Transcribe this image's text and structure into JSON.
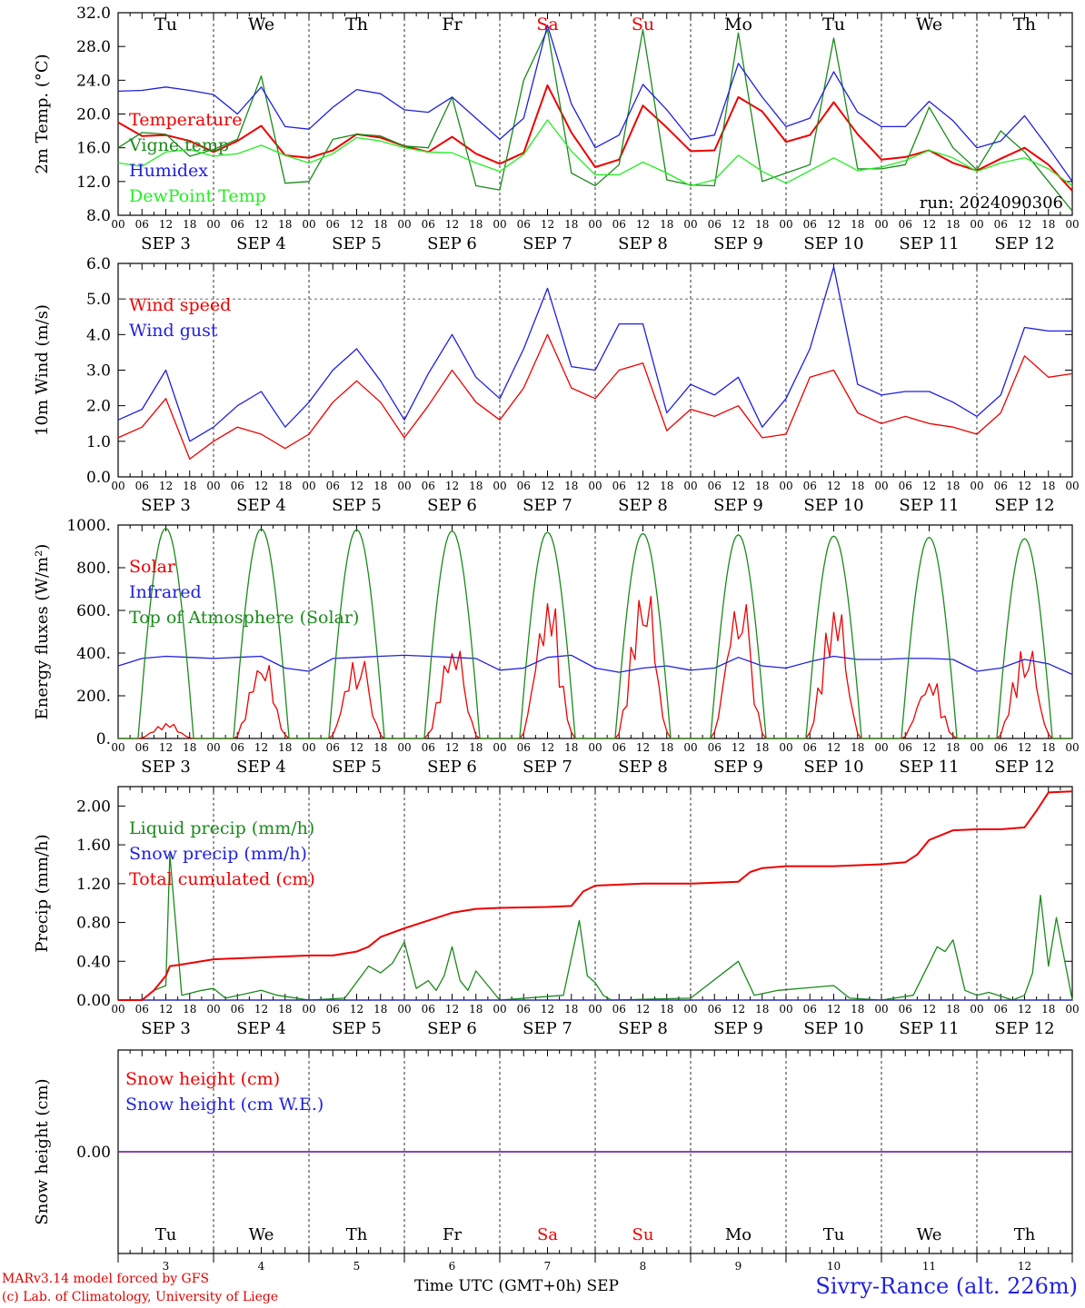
{
  "days": {
    "weekday_labels": [
      "Tu",
      "We",
      "Th",
      "Fr",
      "Sa",
      "Su",
      "Mo",
      "Tu",
      "We",
      "Th"
    ],
    "date_labels": [
      "SEP  3",
      "SEP  4",
      "SEP  5",
      "SEP  6",
      "SEP  7",
      "SEP  8",
      "SEP  9",
      "SEP  10",
      "SEP  11",
      "SEP  12"
    ],
    "day_numbers": [
      "3",
      "4",
      "5",
      "6",
      "7",
      "8",
      "9",
      "10",
      "11",
      "12"
    ],
    "hour_labels": [
      "00",
      "06",
      "12",
      "18"
    ],
    "last_hour_label": "00",
    "weekend_indices": [
      4,
      5
    ]
  },
  "colors": {
    "red": "#ee0000",
    "dark_green": "#1a8a1a",
    "blue": "#1f1fe0",
    "light_green": "#22ee22",
    "purple": "#7a2aa0"
  },
  "run_label": "run: 2024090306",
  "footer": {
    "model": "MARv3.14 model forced by GFS",
    "copyright": "(c) Lab. of Climatology, University of Liege",
    "axis_title": "Time UTC (GMT+0h) SEP",
    "station": "Sivry-Rance (alt. 226m)"
  },
  "chart_data": [
    {
      "id": "temp",
      "type": "line",
      "ylabel": "2m Temp. (°C)",
      "ylim": [
        8,
        32
      ],
      "yticks": [
        8,
        12,
        16,
        20,
        24,
        28,
        32
      ],
      "ytick_labels": [
        "8.0",
        "12.0",
        "16.0",
        "20.0",
        "24.0",
        "28.0",
        "32.0"
      ],
      "series": [
        {
          "name": "Temperature",
          "color": "red",
          "x": [
            0,
            6,
            12,
            18,
            24,
            30,
            36,
            42,
            48,
            54,
            60,
            66,
            72,
            78,
            84,
            90,
            96,
            102,
            108,
            114,
            120,
            126,
            132,
            138,
            144,
            150,
            156,
            162,
            168,
            174,
            180,
            186,
            192,
            198,
            204,
            210,
            216,
            222,
            228,
            234,
            240
          ],
          "y": [
            19,
            17.4,
            17.5,
            16.8,
            15.5,
            16.8,
            18.6,
            15.1,
            14.8,
            15.7,
            17.6,
            17.2,
            16.2,
            15.5,
            17.3,
            15.3,
            14.1,
            15.4,
            23.4,
            17.8,
            13.7,
            14.6,
            21,
            18.4,
            15.6,
            15.7,
            22,
            20.3,
            16.7,
            17.5,
            21.4,
            17.6,
            14.6,
            14.9,
            15.7,
            14.2,
            13.3,
            14.7,
            16,
            14,
            10.9
          ]
        },
        {
          "name": "Vigne temp",
          "color": "dark_green",
          "x": [
            0,
            6,
            12,
            18,
            24,
            30,
            36,
            42,
            48,
            54,
            60,
            66,
            72,
            78,
            84,
            90,
            96,
            102,
            108,
            114,
            120,
            126,
            132,
            138,
            144,
            150,
            156,
            162,
            168,
            174,
            180,
            186,
            192,
            198,
            204,
            210,
            216,
            222,
            228,
            234,
            240
          ],
          "y": [
            16,
            17.8,
            17.6,
            15,
            15.8,
            17,
            24.5,
            11.8,
            12,
            17,
            17.6,
            17.4,
            16.2,
            16,
            22,
            11.5,
            11,
            24,
            30,
            13,
            11.5,
            14,
            30,
            12.2,
            11.6,
            11.5,
            29.6,
            12,
            13,
            14,
            29,
            13.5,
            13.5,
            14,
            20.8,
            16,
            13.4,
            18,
            15.5,
            12,
            8.5
          ]
        },
        {
          "name": "Humidex",
          "color": "blue",
          "x": [
            0,
            6,
            12,
            18,
            24,
            30,
            36,
            42,
            48,
            54,
            60,
            66,
            72,
            78,
            84,
            90,
            96,
            102,
            108,
            114,
            120,
            126,
            132,
            138,
            144,
            150,
            156,
            162,
            168,
            174,
            180,
            186,
            192,
            198,
            204,
            210,
            216,
            222,
            228,
            234,
            240
          ],
          "y": [
            22.7,
            22.8,
            23.2,
            22.8,
            22.3,
            20,
            23.2,
            18.5,
            18.2,
            20.8,
            22.9,
            22.4,
            20.5,
            20.2,
            22,
            19.5,
            17,
            19.5,
            30.5,
            21.2,
            16,
            17.5,
            23.5,
            20.5,
            17,
            17.5,
            26,
            22,
            18.5,
            19.5,
            25,
            20.2,
            18.5,
            18.5,
            21.5,
            19.2,
            16,
            16.8,
            19.8,
            16,
            12
          ]
        },
        {
          "name": "DewPoint Temp",
          "color": "light_green",
          "x": [
            0,
            6,
            12,
            18,
            24,
            30,
            36,
            42,
            48,
            54,
            60,
            66,
            72,
            78,
            84,
            90,
            96,
            102,
            108,
            114,
            120,
            126,
            132,
            138,
            144,
            150,
            156,
            162,
            168,
            174,
            180,
            186,
            192,
            198,
            204,
            210,
            216,
            222,
            228,
            234,
            240
          ],
          "y": [
            14.2,
            13.8,
            15.5,
            15.8,
            15,
            15.3,
            16.3,
            15.1,
            14.2,
            15.3,
            17.2,
            16.8,
            16,
            15.5,
            15.4,
            14.2,
            13.2,
            15.2,
            19.3,
            15.6,
            12.8,
            12.8,
            14.3,
            13,
            11.5,
            12.2,
            15.1,
            13.2,
            11.8,
            13.3,
            14.8,
            13.3,
            13.7,
            14.5,
            15.7,
            14.8,
            13.2,
            14.2,
            14.8,
            13.5,
            11.5
          ]
        }
      ],
      "annotation": "run: 2024090306"
    },
    {
      "id": "wind",
      "type": "line",
      "ylabel": "10m Wind (m/s)",
      "ylim": [
        0,
        6
      ],
      "yticks": [
        0,
        1,
        2,
        3,
        4,
        5,
        6
      ],
      "ytick_labels": [
        "0.0",
        "1.0",
        "2.0",
        "3.0",
        "4.0",
        "5.0",
        "6.0"
      ],
      "reference_line": 5,
      "series": [
        {
          "name": "Wind speed",
          "color": "red",
          "x": [
            0,
            6,
            12,
            18,
            24,
            30,
            36,
            42,
            48,
            54,
            60,
            66,
            72,
            78,
            84,
            90,
            96,
            102,
            108,
            114,
            120,
            126,
            132,
            138,
            144,
            150,
            156,
            162,
            168,
            174,
            180,
            186,
            192,
            198,
            204,
            210,
            216,
            222,
            228,
            234,
            240
          ],
          "y": [
            1.1,
            1.4,
            2.2,
            0.5,
            1,
            1.4,
            1.2,
            0.8,
            1.2,
            2.1,
            2.7,
            2.1,
            1.1,
            2,
            3,
            2.1,
            1.6,
            2.5,
            4,
            2.5,
            2.2,
            3,
            3.2,
            1.3,
            1.9,
            1.7,
            2,
            1.1,
            1.2,
            2.8,
            3,
            1.8,
            1.5,
            1.7,
            1.5,
            1.4,
            1.2,
            1.8,
            3.4,
            2.8,
            2.9
          ]
        },
        {
          "name": "Wind gust",
          "color": "blue",
          "x": [
            0,
            6,
            12,
            18,
            24,
            30,
            36,
            42,
            48,
            54,
            60,
            66,
            72,
            78,
            84,
            90,
            96,
            102,
            108,
            114,
            120,
            126,
            132,
            138,
            144,
            150,
            156,
            162,
            168,
            174,
            180,
            186,
            192,
            198,
            204,
            210,
            216,
            222,
            228,
            234,
            240
          ],
          "y": [
            1.6,
            1.9,
            3,
            1,
            1.4,
            2,
            2.4,
            1.4,
            2.1,
            3,
            3.6,
            2.7,
            1.6,
            2.9,
            4,
            2.8,
            2.2,
            3.6,
            5.3,
            3.1,
            3,
            4.3,
            4.3,
            1.8,
            2.6,
            2.3,
            2.8,
            1.4,
            2.2,
            3.6,
            5.9,
            2.6,
            2.3,
            2.4,
            2.4,
            2.1,
            1.7,
            2.3,
            4.2,
            4.1,
            4.1
          ]
        }
      ]
    },
    {
      "id": "energy",
      "type": "line",
      "ylabel": "Energy fluxes (W/m²)",
      "ylim": [
        0,
        1000
      ],
      "yticks": [
        0,
        200,
        400,
        600,
        800,
        1000
      ],
      "ytick_labels": [
        "0.",
        "200.",
        "400.",
        "600.",
        "800.",
        "1000."
      ],
      "series": [
        {
          "name": "Solar",
          "color": "red",
          "peaks": [
            70,
            360,
            380,
            430,
            640,
            700,
            660,
            610,
            270,
            430
          ]
        },
        {
          "name": "Infrared",
          "color": "blue",
          "x": [
            0,
            6,
            12,
            18,
            24,
            30,
            36,
            42,
            48,
            54,
            60,
            66,
            72,
            78,
            84,
            90,
            96,
            102,
            108,
            114,
            120,
            126,
            132,
            138,
            144,
            150,
            156,
            162,
            168,
            174,
            180,
            186,
            192,
            198,
            204,
            210,
            216,
            222,
            228,
            234,
            240
          ],
          "y": [
            340,
            375,
            385,
            380,
            375,
            380,
            385,
            330,
            315,
            375,
            380,
            385,
            390,
            385,
            380,
            375,
            320,
            330,
            380,
            390,
            330,
            310,
            330,
            340,
            320,
            330,
            380,
            340,
            330,
            360,
            385,
            370,
            370,
            375,
            375,
            370,
            315,
            330,
            370,
            350,
            300
          ]
        },
        {
          "name": "Top of Atmosphere (Solar)",
          "color": "dark_green",
          "peaks": [
            985,
            982,
            978,
            972,
            966,
            960,
            954,
            948,
            942,
            936
          ]
        }
      ]
    },
    {
      "id": "precip",
      "type": "line",
      "ylabel": "Precip (mm/h)",
      "ylim": [
        0,
        2.2
      ],
      "yticks": [
        0,
        0.4,
        0.8,
        1.2,
        1.6,
        2.0
      ],
      "ytick_labels": [
        "0.00",
        "0.40",
        "0.80",
        "1.20",
        "1.60",
        "2.00"
      ],
      "series": [
        {
          "name": "Liquid precip (mm/h)",
          "color": "dark_green",
          "x": [
            0,
            6,
            9,
            12,
            13,
            16,
            21,
            24,
            27,
            36,
            40,
            48,
            57,
            63,
            66,
            69,
            72,
            75,
            78,
            80,
            82,
            84,
            86,
            88,
            90,
            96,
            112,
            116,
            118,
            120,
            122,
            124,
            144,
            156,
            160,
            166,
            180,
            184,
            192,
            200,
            204,
            206,
            208,
            210,
            213,
            216,
            219,
            225,
            228,
            230,
            232,
            234,
            236,
            240
          ],
          "y": [
            0,
            0,
            0.1,
            0.15,
            1.5,
            0.05,
            0.1,
            0.12,
            0.02,
            0.1,
            0.05,
            0,
            0.02,
            0.35,
            0.28,
            0.38,
            0.6,
            0.12,
            0.2,
            0.1,
            0.25,
            0.55,
            0.2,
            0.1,
            0.3,
            0,
            0.05,
            0.82,
            0.25,
            0.18,
            0.05,
            0,
            0.02,
            0.4,
            0.05,
            0.1,
            0.15,
            0.02,
            0,
            0.05,
            0.38,
            0.55,
            0.5,
            0.62,
            0.1,
            0.05,
            0.08,
            0,
            0.05,
            0.28,
            1.08,
            0.35,
            0.85,
            0
          ]
        },
        {
          "name": "Snow precip (mm/h)",
          "color": "blue",
          "x": [
            0,
            240
          ],
          "y": [
            0,
            0
          ]
        },
        {
          "name": "Total cumulated (cm)",
          "color": "red",
          "x": [
            0,
            6,
            9,
            12,
            13,
            15,
            18,
            24,
            36,
            48,
            54,
            60,
            63,
            66,
            72,
            78,
            84,
            90,
            96,
            108,
            114,
            117,
            120,
            132,
            144,
            156,
            159,
            162,
            168,
            180,
            192,
            198,
            201,
            204,
            210,
            216,
            222,
            228,
            231,
            234,
            240
          ],
          "y": [
            0,
            0,
            0.1,
            0.25,
            0.35,
            0.36,
            0.38,
            0.42,
            0.44,
            0.46,
            0.46,
            0.5,
            0.55,
            0.65,
            0.74,
            0.82,
            0.9,
            0.94,
            0.95,
            0.96,
            0.97,
            1.12,
            1.18,
            1.2,
            1.2,
            1.22,
            1.32,
            1.36,
            1.38,
            1.38,
            1.4,
            1.42,
            1.5,
            1.65,
            1.75,
            1.76,
            1.76,
            1.78,
            1.95,
            2.14,
            2.15
          ]
        }
      ]
    },
    {
      "id": "snow",
      "type": "line",
      "ylabel": "Snow height (cm)",
      "ylim": [
        -1,
        1
      ],
      "yticks": [
        0
      ],
      "ytick_labels": [
        "0.00"
      ],
      "series": [
        {
          "name": "Snow height (cm)",
          "color": "red",
          "x": [
            0,
            240
          ],
          "y": [
            0,
            0
          ]
        },
        {
          "name": "Snow height (cm W.E.)",
          "color": "blue",
          "x": [
            0,
            240
          ],
          "y": [
            0,
            0
          ]
        }
      ]
    }
  ]
}
